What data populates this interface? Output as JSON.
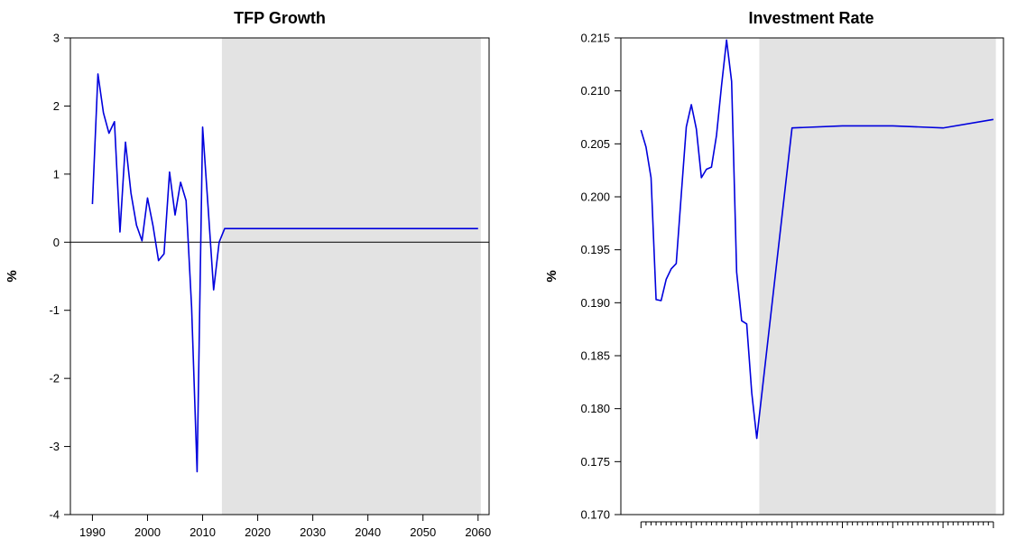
{
  "chart_data": [
    {
      "type": "line",
      "title": "TFP Growth",
      "ylabel": "%",
      "xlabel": "",
      "xlim": [
        1986,
        2062
      ],
      "ylim": [
        -4,
        3
      ],
      "yticks": [
        "3",
        "2",
        "1",
        "0",
        "-1",
        "-2",
        "-3",
        "-4"
      ],
      "yticks_values": [
        3,
        2,
        1,
        0,
        -1,
        -2,
        -3,
        -4
      ],
      "xticks": [
        "1990",
        "2000",
        "2010",
        "2020",
        "2030",
        "2040",
        "2050",
        "2060"
      ],
      "xticks_values": [
        1990,
        2000,
        2010,
        2020,
        2030,
        2040,
        2050,
        2060
      ],
      "zero_line": true,
      "shaded_region": [
        2013.5,
        2060.5
      ],
      "line_color": "#0000dd",
      "shade_color": "#e3e3e3",
      "series": [
        {
          "x": [
            1990,
            1991,
            1992,
            1993,
            1994,
            1995,
            1996,
            1997,
            1998,
            1999,
            2000,
            2001,
            2002,
            2003,
            2004,
            2005,
            2006,
            2007,
            2008,
            2009,
            2010,
            2011,
            2012,
            2013,
            2014,
            2020,
            2030,
            2040,
            2050,
            2060
          ],
          "values": [
            0.56,
            2.47,
            1.9,
            1.6,
            1.77,
            0.15,
            1.47,
            0.72,
            0.25,
            0.02,
            0.65,
            0.24,
            -0.27,
            -0.17,
            1.03,
            0.4,
            0.88,
            0.61,
            -0.95,
            -3.37,
            1.69,
            0.51,
            -0.7,
            0.0,
            0.2,
            0.2,
            0.2,
            0.2,
            0.2,
            0.2
          ]
        }
      ]
    },
    {
      "type": "line",
      "title": "Investment Rate",
      "ylabel": "%",
      "xlabel": "",
      "xlim": [
        1986,
        2062
      ],
      "ylim": [
        0.17,
        0.215
      ],
      "yticks": [
        "0.215",
        "0.210",
        "0.205",
        "0.200",
        "0.195",
        "0.190",
        "0.185",
        "0.180",
        "0.175",
        "0.170"
      ],
      "yticks_values": [
        0.215,
        0.21,
        0.205,
        0.2,
        0.195,
        0.19,
        0.185,
        0.18,
        0.175,
        0.17
      ],
      "xticks": [],
      "major_xticks_values": [
        1990,
        2000,
        2010,
        2020,
        2030,
        2040,
        2050,
        2060
      ],
      "shaded_region": [
        2013.5,
        2060.5
      ],
      "line_color": "#0000dd",
      "shade_color": "#e3e3e3",
      "series": [
        {
          "x": [
            1990,
            1991,
            1992,
            1993,
            1994,
            1995,
            1996,
            1997,
            1998,
            1999,
            2000,
            2001,
            2002,
            2003,
            2004,
            2005,
            2006,
            2007,
            2008,
            2009,
            2010,
            2011,
            2012,
            2013,
            2020,
            2030,
            2040,
            2050,
            2060
          ],
          "values": [
            0.2063,
            0.2047,
            0.2018,
            0.1903,
            0.1902,
            0.1922,
            0.1932,
            0.1937,
            0.2002,
            0.2066,
            0.2087,
            0.2064,
            0.2018,
            0.2026,
            0.2028,
            0.2058,
            0.2105,
            0.2148,
            0.2109,
            0.1929,
            0.1883,
            0.188,
            0.1815,
            0.1772,
            0.2065,
            0.2067,
            0.2067,
            0.2065,
            0.2073
          ]
        }
      ]
    }
  ]
}
